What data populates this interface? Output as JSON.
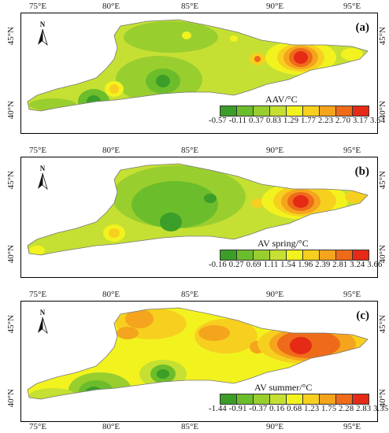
{
  "longitudes": [
    "75°E",
    "80°E",
    "85°E",
    "90°E",
    "95°E"
  ],
  "latitudes": [
    "45°N",
    "40°N"
  ],
  "north_label": "N",
  "colors": {
    "c1": "#3a9e28",
    "c2": "#6cbd2c",
    "c3": "#99ce2f",
    "c4": "#c5e033",
    "c5": "#f2f21f",
    "c6": "#f7cf1f",
    "c7": "#f5a41e",
    "c8": "#ee6b1a",
    "c9": "#e52a16",
    "frame": "#000000"
  },
  "panels": [
    {
      "id": "a",
      "label": "(a)",
      "legend_title": "AAV/°C",
      "legend_values": "-0.57  -0.11  0.37  0.83  1.29  1.77  2.23  2.70  3.17  3.64"
    },
    {
      "id": "b",
      "label": "(b)",
      "legend_title": "AV spring/°C",
      "legend_values": "-0.16  0.27  0.69  1.11  1.54  1.96  2.39  2.81  3.24  3.66"
    },
    {
      "id": "c",
      "label": "(c)",
      "legend_title": "AV summer/°C",
      "legend_values": "-1.44  -0.91  -0.37  0.16  0.68  1.23  1.75  2.28  2.83  3.35"
    }
  ]
}
